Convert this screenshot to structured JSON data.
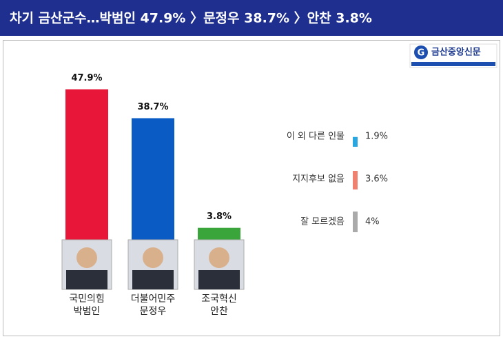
{
  "chart_data": [
    {
      "type": "bar",
      "title": "차기 금산군수…박범인 47.9% 〉문정우 38.7% 〉안찬 3.8%",
      "logo": "금산중앙신문",
      "categories": [
        "박범인",
        "문정우",
        "안찬"
      ],
      "parties": [
        "국민의힘",
        "더불어민주",
        "조국혁신"
      ],
      "values": [
        47.9,
        38.7,
        3.8
      ],
      "value_labels": [
        "47.9%",
        "38.7%",
        "3.8%"
      ],
      "colors": [
        "#e8173a",
        "#0a5bc4",
        "#3aa53a"
      ],
      "ylim": [
        0,
        50
      ]
    },
    {
      "type": "bar",
      "categories": [
        "이 외 다른 인물",
        "지지후보 없음",
        "잘 모르겠음"
      ],
      "values": [
        1.9,
        3.6,
        4
      ],
      "value_labels": [
        "1.9%",
        "3.6%",
        "4%"
      ],
      "colors": [
        "#2aa7e0",
        "#f08070",
        "#aaaaaa"
      ],
      "ylim": [
        0,
        4
      ]
    }
  ]
}
